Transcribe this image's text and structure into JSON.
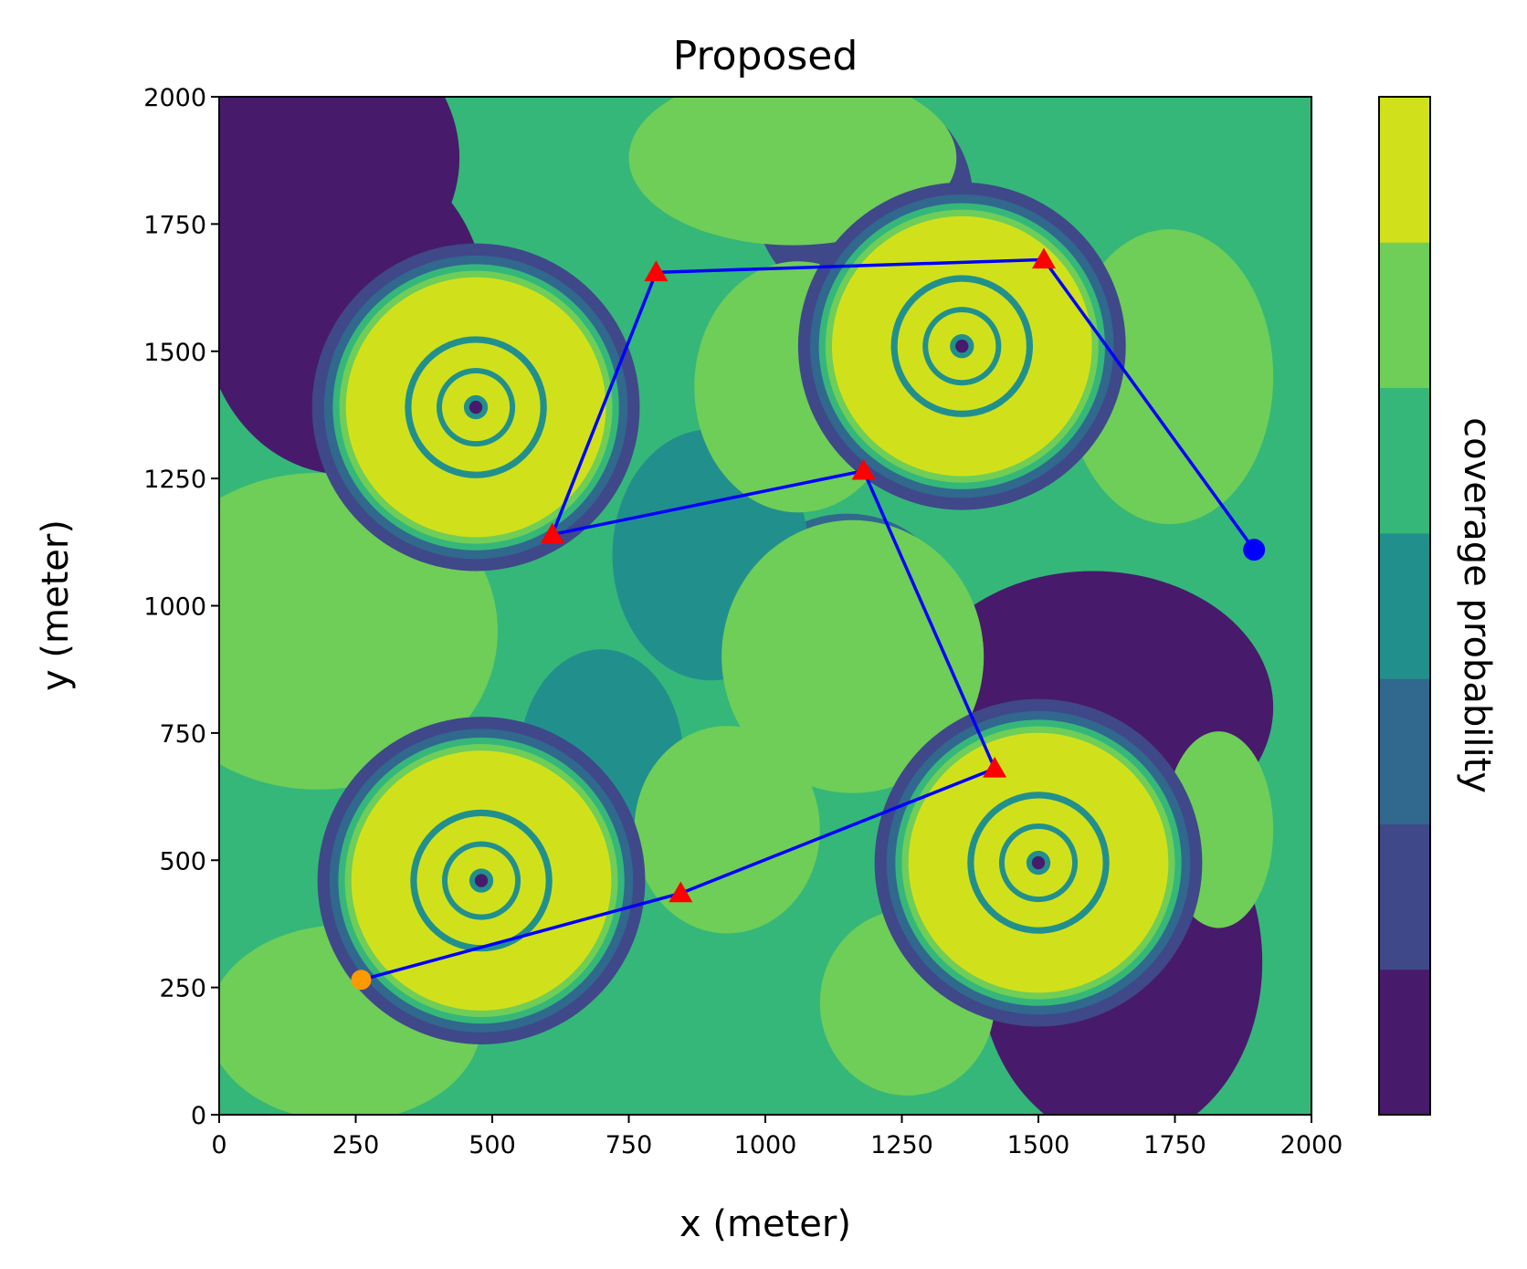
{
  "chart_data": {
    "type": "contour",
    "title": "Proposed",
    "xlabel": "x (meter)",
    "ylabel": "y (meter)",
    "xlim": [
      0,
      2000
    ],
    "ylim": [
      0,
      2000
    ],
    "xticks": [
      0,
      250,
      500,
      750,
      1000,
      1250,
      1500,
      1750,
      2000
    ],
    "yticks": [
      0,
      250,
      500,
      750,
      1000,
      1250,
      1500,
      1750,
      2000
    ],
    "colorbar": {
      "label": "coverage probability",
      "levels": 7,
      "colors": [
        "#481a6c",
        "#3f4889",
        "#31688e",
        "#21908d",
        "#35b779",
        "#6ece58",
        "#d0e11c"
      ]
    },
    "coverage_centers": [
      {
        "x": 470,
        "y": 1390,
        "ring": "#d0e11c"
      },
      {
        "x": 1360,
        "y": 1510,
        "ring": "#d0e11c"
      },
      {
        "x": 480,
        "y": 460,
        "ring": "#d0e11c"
      },
      {
        "x": 1500,
        "y": 495,
        "ring": "#d0e11c"
      }
    ],
    "trajectory": {
      "color": "#0000ff",
      "points": [
        {
          "x": 260,
          "y": 265
        },
        {
          "x": 845,
          "y": 435
        },
        {
          "x": 1420,
          "y": 680
        },
        {
          "x": 1180,
          "y": 1265
        },
        {
          "x": 610,
          "y": 1140
        },
        {
          "x": 800,
          "y": 1655
        },
        {
          "x": 1510,
          "y": 1680
        },
        {
          "x": 1895,
          "y": 1110
        }
      ]
    },
    "waypoints": {
      "marker": "triangle",
      "color": "#ff0000",
      "points": [
        {
          "x": 845,
          "y": 435
        },
        {
          "x": 1420,
          "y": 680
        },
        {
          "x": 1180,
          "y": 1265
        },
        {
          "x": 610,
          "y": 1140
        },
        {
          "x": 800,
          "y": 1655
        },
        {
          "x": 1510,
          "y": 1680
        }
      ]
    },
    "start": {
      "x": 260,
      "y": 265,
      "color": "#ff9900"
    },
    "end": {
      "x": 1895,
      "y": 1110,
      "color": "#0000ff"
    }
  }
}
